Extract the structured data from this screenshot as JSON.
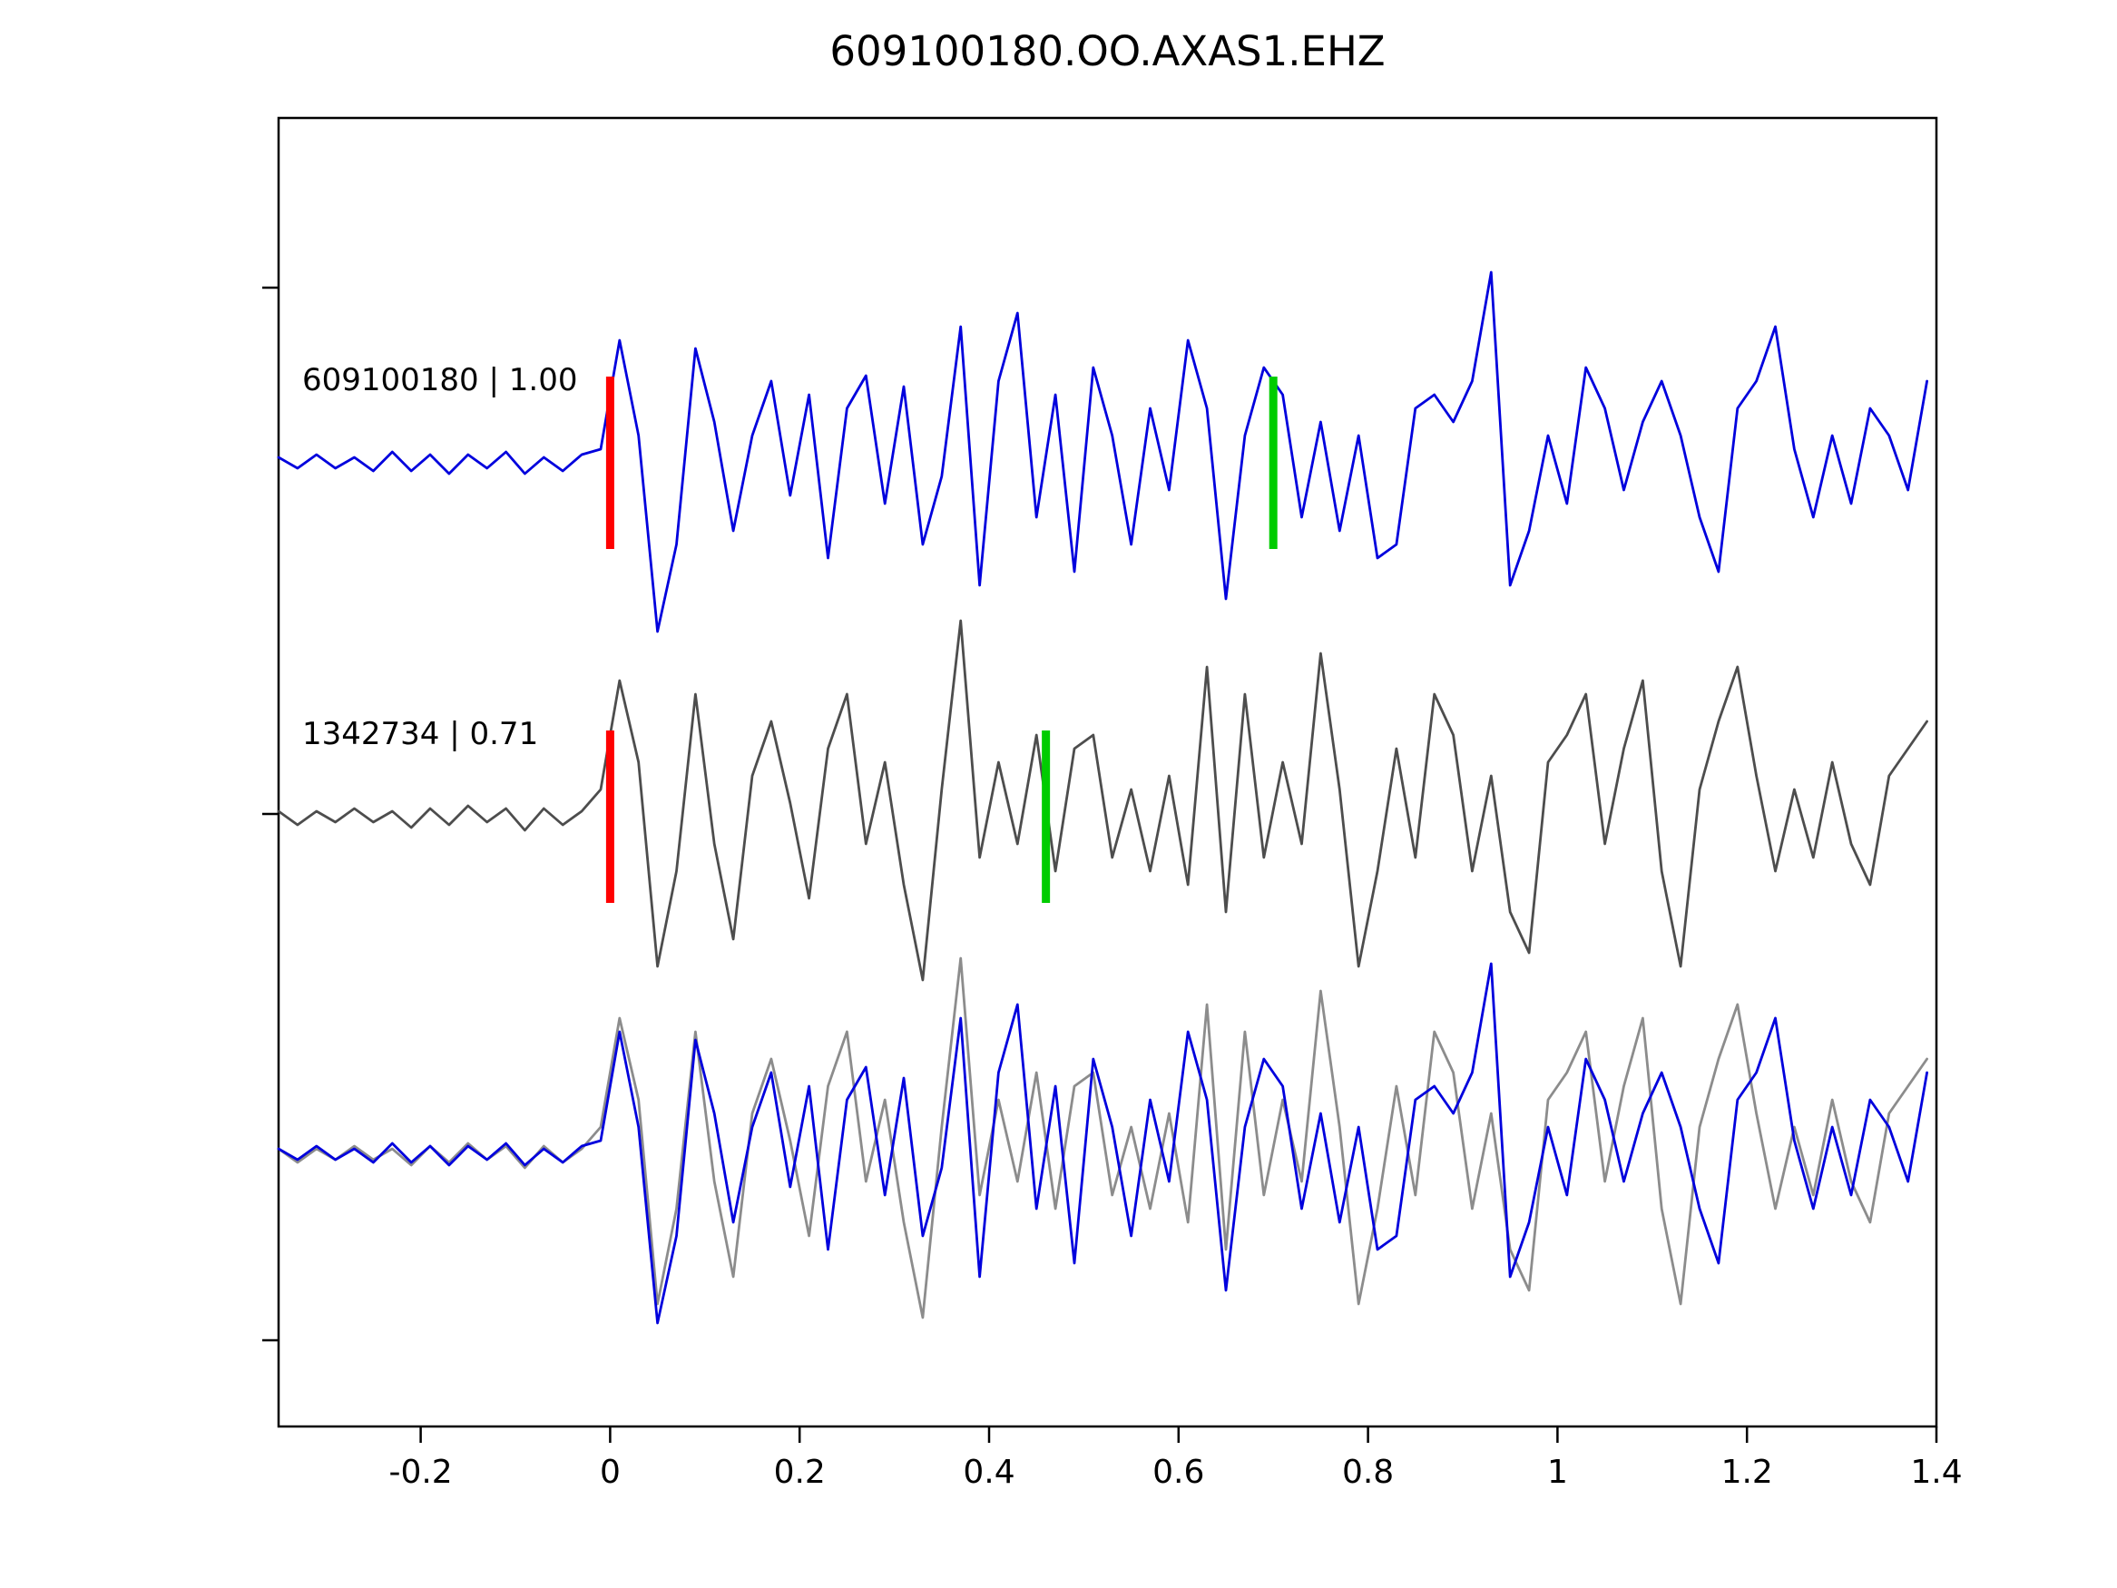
{
  "chart_data": {
    "type": "line",
    "title": "609100180.OO.AXAS1.EHZ",
    "xlabel": "",
    "ylabel": "",
    "xlim": [
      -0.35,
      1.4
    ],
    "grid": false,
    "legend": "none",
    "xticks": {
      "values": [
        -0.2,
        0,
        0.2,
        0.4,
        0.6,
        0.8,
        1,
        1.2,
        1.4
      ],
      "labels": [
        "-0.2",
        "0",
        "0.2",
        "0.4",
        "0.6",
        "0.8",
        "1",
        "1.2",
        "1.4"
      ]
    },
    "x_start": -0.35,
    "dt": 0.02,
    "colors": {
      "template_blue": "#0000dd",
      "detection_gray": "#4d4d4d",
      "overlay_gray": "#8c8c8c",
      "pick_red": "#ff0000",
      "pick_green": "#00cc00",
      "axis": "#000000"
    },
    "rows": [
      {
        "name": "template",
        "label": "609100180 | 1.00",
        "series": [
          "blue"
        ],
        "colors": [
          "#0000dd"
        ],
        "picks": [
          {
            "time": 0.0,
            "color": "#ff0000",
            "name": "red-pick-marker"
          },
          {
            "time": 0.7,
            "color": "#00cc00",
            "name": "green-pick-marker"
          }
        ]
      },
      {
        "name": "detection",
        "label": "1342734 | 0.71",
        "series": [
          "gray"
        ],
        "colors": [
          "#4d4d4d"
        ],
        "picks": [
          {
            "time": 0.0,
            "color": "#ff0000",
            "name": "red-pick-marker"
          },
          {
            "time": 0.46,
            "color": "#00cc00",
            "name": "green-pick-marker"
          }
        ]
      },
      {
        "name": "overlay",
        "label": "",
        "series": [
          "gray",
          "blue"
        ],
        "colors": [
          "#8c8c8c",
          "#0000dd"
        ],
        "picks": []
      }
    ],
    "series": {
      "blue": [
        0.02,
        -0.02,
        0.03,
        -0.02,
        0.02,
        -0.03,
        0.04,
        -0.03,
        0.03,
        -0.04,
        0.03,
        -0.02,
        0.04,
        -0.04,
        0.02,
        -0.03,
        0.03,
        0.05,
        0.45,
        0.1,
        -0.62,
        -0.3,
        0.42,
        0.15,
        -0.25,
        0.1,
        0.3,
        -0.12,
        0.25,
        -0.35,
        0.2,
        0.32,
        -0.15,
        0.28,
        -0.3,
        -0.05,
        0.5,
        -0.45,
        0.3,
        0.55,
        -0.2,
        0.25,
        -0.4,
        0.35,
        0.1,
        -0.3,
        0.2,
        -0.1,
        0.45,
        0.2,
        -0.5,
        0.1,
        0.35,
        0.25,
        -0.2,
        0.15,
        -0.25,
        0.1,
        -0.35,
        -0.3,
        0.2,
        0.25,
        0.15,
        0.3,
        0.7,
        -0.45,
        -0.25,
        0.1,
        -0.15,
        0.35,
        0.2,
        -0.1,
        0.15,
        0.3,
        0.1,
        -0.2,
        -0.4,
        0.2,
        0.3,
        0.5,
        0.05,
        -0.2,
        0.1,
        -0.15,
        0.2,
        0.1,
        -0.1,
        0.3
      ],
      "gray": [
        0.02,
        -0.03,
        0.02,
        -0.02,
        0.03,
        -0.02,
        0.02,
        -0.04,
        0.03,
        -0.03,
        0.04,
        -0.02,
        0.03,
        -0.05,
        0.03,
        -0.03,
        0.02,
        0.1,
        0.5,
        0.2,
        -0.55,
        -0.2,
        0.45,
        -0.1,
        -0.45,
        0.15,
        0.35,
        0.05,
        -0.3,
        0.25,
        0.45,
        -0.1,
        0.2,
        -0.25,
        -0.6,
        0.1,
        0.72,
        -0.15,
        0.2,
        -0.1,
        0.3,
        -0.2,
        0.25,
        0.3,
        -0.15,
        0.1,
        -0.2,
        0.15,
        -0.25,
        0.55,
        -0.35,
        0.45,
        -0.15,
        0.2,
        -0.1,
        0.6,
        0.1,
        -0.55,
        -0.2,
        0.25,
        -0.15,
        0.45,
        0.3,
        -0.2,
        0.15,
        -0.35,
        -0.5,
        0.2,
        0.3,
        0.45,
        -0.1,
        0.25,
        0.5,
        -0.2,
        -0.55,
        0.1,
        0.35,
        0.55,
        0.15,
        -0.2,
        0.1,
        -0.15,
        0.2,
        -0.1,
        -0.25,
        0.15,
        0.25,
        0.35
      ]
    }
  }
}
